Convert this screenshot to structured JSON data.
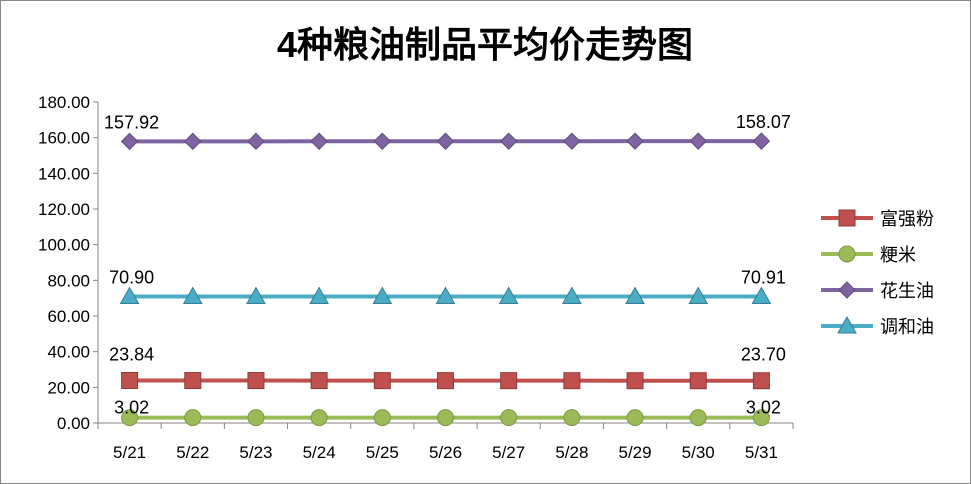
{
  "chart_data": {
    "type": "line",
    "title": "4种粮油制品平均价走势图",
    "xlabel": "",
    "ylabel": "",
    "categories": [
      "5/21",
      "5/22",
      "5/23",
      "5/24",
      "5/25",
      "5/26",
      "5/27",
      "5/28",
      "5/29",
      "5/30",
      "5/31"
    ],
    "ylim": [
      0,
      180
    ],
    "y_ticks": [
      "0.00",
      "20.00",
      "40.00",
      "60.00",
      "80.00",
      "100.00",
      "120.00",
      "140.00",
      "160.00",
      "180.00"
    ],
    "grid": false,
    "legend_position": "right",
    "series": [
      {
        "name": "富强粉",
        "color": "#C0504D",
        "marker": "square",
        "values": [
          23.84,
          23.8,
          23.8,
          23.78,
          23.76,
          23.75,
          23.74,
          23.73,
          23.72,
          23.71,
          23.7
        ],
        "data_labels": [
          {
            "index": 0,
            "text": "23.84"
          },
          {
            "index": 10,
            "text": "23.70"
          }
        ]
      },
      {
        "name": "粳米",
        "color": "#9BBB59",
        "marker": "circle",
        "values": [
          3.02,
          3.02,
          3.02,
          3.02,
          3.02,
          3.02,
          3.02,
          3.02,
          3.02,
          3.02,
          3.02
        ],
        "data_labels": [
          {
            "index": 0,
            "text": "3.02"
          },
          {
            "index": 10,
            "text": "3.02"
          }
        ]
      },
      {
        "name": "花生油",
        "color": "#8064A2",
        "marker": "diamond",
        "values": [
          157.92,
          157.95,
          157.95,
          157.97,
          157.98,
          158.0,
          158.01,
          158.02,
          158.03,
          158.05,
          158.07
        ],
        "data_labels": [
          {
            "index": 0,
            "text": "157.92"
          },
          {
            "index": 10,
            "text": "158.07"
          }
        ]
      },
      {
        "name": "调和油",
        "color": "#4BACC6",
        "marker": "triangle",
        "values": [
          70.9,
          70.9,
          70.9,
          70.9,
          70.9,
          70.91,
          70.91,
          70.91,
          70.91,
          70.91,
          70.91
        ],
        "data_labels": [
          {
            "index": 0,
            "text": "70.90"
          },
          {
            "index": 10,
            "text": "70.91"
          }
        ]
      }
    ]
  }
}
